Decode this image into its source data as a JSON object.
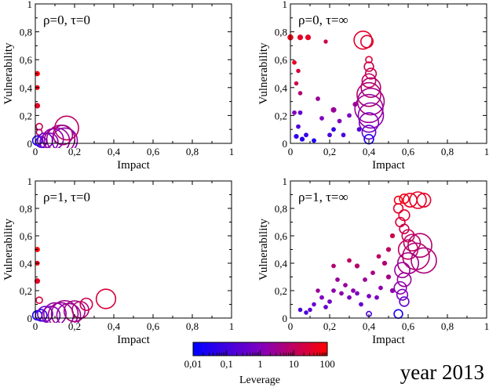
{
  "figure_label": "year 2013",
  "colorbar": {
    "title": "Leverage",
    "ticks": [
      "0,01",
      "0,1",
      "1",
      "10",
      "100"
    ],
    "colors": {
      "low": "#0000ff",
      "mid": "#7f00bf",
      "high": "#ff0000"
    }
  },
  "chart_data": [
    {
      "type": "scatter",
      "panel": "top-left",
      "title": "ρ=0, τ=0",
      "xlabel": "Impact",
      "ylabel": "Vulnerability",
      "xlim": [
        0,
        1
      ],
      "ylim": [
        0,
        1
      ],
      "xtick_labels": [
        "0",
        "0,2",
        "0,4",
        "0,6",
        "0,8",
        "1"
      ],
      "ytick_labels": [
        "0",
        "0,2",
        "0,4",
        "0,6",
        "0,8",
        "1"
      ],
      "points": [
        {
          "x": 0.01,
          "y": 0.5,
          "size": 0.25,
          "color": 1.0
        },
        {
          "x": 0.01,
          "y": 0.4,
          "size": 0.2,
          "color": 0.95
        },
        {
          "x": 0.01,
          "y": 0.27,
          "size": 0.3,
          "color": 0.9
        },
        {
          "x": 0.02,
          "y": 0.12,
          "size": 0.6,
          "color": 0.8
        },
        {
          "x": 0.02,
          "y": 0.08,
          "size": 0.5,
          "color": 0.7
        },
        {
          "x": 0.01,
          "y": 0.02,
          "size": 1.0,
          "color": 0.1
        },
        {
          "x": 0.03,
          "y": 0.01,
          "size": 1.2,
          "color": 0.2
        },
        {
          "x": 0.05,
          "y": 0.02,
          "size": 1.8,
          "color": 0.4
        },
        {
          "x": 0.07,
          "y": 0.01,
          "size": 2.2,
          "color": 0.5
        },
        {
          "x": 0.09,
          "y": 0.03,
          "size": 2.6,
          "color": 0.55
        },
        {
          "x": 0.11,
          "y": 0.02,
          "size": 3.2,
          "color": 0.6
        },
        {
          "x": 0.13,
          "y": 0.03,
          "size": 3.6,
          "color": 0.62
        },
        {
          "x": 0.15,
          "y": 0.02,
          "size": 3.2,
          "color": 0.55
        },
        {
          "x": 0.16,
          "y": 0.11,
          "size": 3.0,
          "color": 0.75
        },
        {
          "x": 0.14,
          "y": 0.06,
          "size": 2.4,
          "color": 0.65
        }
      ]
    },
    {
      "type": "scatter",
      "panel": "top-right",
      "title": "ρ=0, τ=∞",
      "xlabel": "Impact",
      "ylabel": "Vulnerability",
      "xlim": [
        0,
        1
      ],
      "ylim": [
        0,
        1
      ],
      "xtick_labels": [
        "0",
        "0,2",
        "0,4",
        "0,6",
        "0,8",
        "1"
      ],
      "ytick_labels": [
        "0",
        "0,2",
        "0,4",
        "0,6",
        "0,8",
        "1"
      ],
      "points": [
        {
          "x": 0.0,
          "y": 0.76,
          "size": 0.35,
          "color": 0.95
        },
        {
          "x": 0.05,
          "y": 0.76,
          "size": 0.3,
          "color": 0.9
        },
        {
          "x": 0.09,
          "y": 0.76,
          "size": 0.3,
          "color": 0.9
        },
        {
          "x": 0.18,
          "y": 0.73,
          "size": 0.1,
          "color": 0.8
        },
        {
          "x": 0.37,
          "y": 0.74,
          "size": 2.2,
          "color": 0.9
        },
        {
          "x": 0.39,
          "y": 0.73,
          "size": 1.4,
          "color": 0.88
        },
        {
          "x": 0.4,
          "y": 0.6,
          "size": 0.6,
          "color": 0.85
        },
        {
          "x": 0.4,
          "y": 0.55,
          "size": 1.0,
          "color": 0.8
        },
        {
          "x": 0.41,
          "y": 0.5,
          "size": 1.2,
          "color": 0.8
        },
        {
          "x": 0.4,
          "y": 0.45,
          "size": 1.6,
          "color": 0.75
        },
        {
          "x": 0.41,
          "y": 0.4,
          "size": 2.4,
          "color": 0.7
        },
        {
          "x": 0.4,
          "y": 0.35,
          "size": 3.0,
          "color": 0.7
        },
        {
          "x": 0.41,
          "y": 0.3,
          "size": 3.4,
          "color": 0.65
        },
        {
          "x": 0.4,
          "y": 0.25,
          "size": 3.6,
          "color": 0.6
        },
        {
          "x": 0.41,
          "y": 0.2,
          "size": 3.2,
          "color": 0.55
        },
        {
          "x": 0.4,
          "y": 0.15,
          "size": 2.4,
          "color": 0.5
        },
        {
          "x": 0.4,
          "y": 0.08,
          "size": 1.6,
          "color": 0.4
        },
        {
          "x": 0.4,
          "y": 0.03,
          "size": 1.0,
          "color": 0.1
        },
        {
          "x": 0.02,
          "y": 0.58,
          "size": 0.15,
          "color": 0.9
        },
        {
          "x": 0.04,
          "y": 0.52,
          "size": 0.12,
          "color": 0.85
        },
        {
          "x": 0.03,
          "y": 0.43,
          "size": 0.12,
          "color": 0.8
        },
        {
          "x": 0.05,
          "y": 0.36,
          "size": 0.12,
          "color": 0.7
        },
        {
          "x": 0.02,
          "y": 0.22,
          "size": 0.15,
          "color": 0.5
        },
        {
          "x": 0.05,
          "y": 0.22,
          "size": 0.15,
          "color": 0.4
        },
        {
          "x": 0.04,
          "y": 0.12,
          "size": 0.15,
          "color": 0.3
        },
        {
          "x": 0.03,
          "y": 0.05,
          "size": 0.2,
          "color": 0.2
        },
        {
          "x": 0.06,
          "y": 0.03,
          "size": 0.2,
          "color": 0.15
        },
        {
          "x": 0.08,
          "y": 0.06,
          "size": 0.15,
          "color": 0.2
        },
        {
          "x": 0.12,
          "y": 0.02,
          "size": 0.15,
          "color": 0.1
        },
        {
          "x": 0.16,
          "y": 0.18,
          "size": 0.15,
          "color": 0.5
        },
        {
          "x": 0.2,
          "y": 0.06,
          "size": 0.15,
          "color": 0.3
        },
        {
          "x": 0.22,
          "y": 0.24,
          "size": 0.3,
          "color": 0.6
        },
        {
          "x": 0.25,
          "y": 0.16,
          "size": 0.15,
          "color": 0.5
        },
        {
          "x": 0.27,
          "y": 0.06,
          "size": 0.15,
          "color": 0.3
        },
        {
          "x": 0.3,
          "y": 0.2,
          "size": 0.15,
          "color": 0.5
        },
        {
          "x": 0.33,
          "y": 0.28,
          "size": 0.2,
          "color": 0.6
        },
        {
          "x": 0.35,
          "y": 0.1,
          "size": 0.15,
          "color": 0.3
        },
        {
          "x": 0.22,
          "y": 0.1,
          "size": 0.15,
          "color": 0.2
        },
        {
          "x": 0.14,
          "y": 0.32,
          "size": 0.15,
          "color": 0.6
        }
      ]
    },
    {
      "type": "scatter",
      "panel": "bottom-left",
      "title": "ρ=1, τ=0",
      "xlabel": "Impact",
      "ylabel": "Vulnerability",
      "xlim": [
        0,
        1
      ],
      "ylim": [
        0,
        1
      ],
      "xtick_labels": [
        "0",
        "0,2",
        "0,4",
        "0,6",
        "0,8",
        "1"
      ],
      "ytick_labels": [
        "0",
        "0,2",
        "0,4",
        "0,6",
        "0,8",
        "1"
      ],
      "points": [
        {
          "x": 0.01,
          "y": 0.5,
          "size": 0.25,
          "color": 1.0
        },
        {
          "x": 0.01,
          "y": 0.4,
          "size": 0.2,
          "color": 0.95
        },
        {
          "x": 0.01,
          "y": 0.27,
          "size": 0.3,
          "color": 0.9
        },
        {
          "x": 0.02,
          "y": 0.13,
          "size": 0.6,
          "color": 0.85
        },
        {
          "x": 0.01,
          "y": 0.02,
          "size": 1.0,
          "color": 0.1
        },
        {
          "x": 0.03,
          "y": 0.02,
          "size": 1.3,
          "color": 0.2
        },
        {
          "x": 0.05,
          "y": 0.03,
          "size": 1.8,
          "color": 0.4
        },
        {
          "x": 0.08,
          "y": 0.02,
          "size": 2.2,
          "color": 0.5
        },
        {
          "x": 0.1,
          "y": 0.03,
          "size": 2.8,
          "color": 0.55
        },
        {
          "x": 0.13,
          "y": 0.02,
          "size": 3.2,
          "color": 0.6
        },
        {
          "x": 0.15,
          "y": 0.03,
          "size": 3.4,
          "color": 0.62
        },
        {
          "x": 0.17,
          "y": 0.02,
          "size": 3.0,
          "color": 0.6
        },
        {
          "x": 0.2,
          "y": 0.05,
          "size": 2.6,
          "color": 0.65
        },
        {
          "x": 0.23,
          "y": 0.06,
          "size": 2.0,
          "color": 0.7
        },
        {
          "x": 0.26,
          "y": 0.1,
          "size": 1.4,
          "color": 0.8
        },
        {
          "x": 0.36,
          "y": 0.14,
          "size": 2.4,
          "color": 0.85
        }
      ]
    },
    {
      "type": "scatter",
      "panel": "bottom-right",
      "title": "ρ=1, τ=∞",
      "xlabel": "Impact",
      "ylabel": "Vulnerability",
      "xlim": [
        0,
        1
      ],
      "ylim": [
        0,
        1
      ],
      "xtick_labels": [
        "0",
        "0,2",
        "0,4",
        "0,6",
        "0,8",
        "1"
      ],
      "ytick_labels": [
        "0",
        "0,2",
        "0,4",
        "0,6",
        "0,8",
        "1"
      ],
      "points": [
        {
          "x": 0.55,
          "y": 0.86,
          "size": 0.8,
          "color": 0.95
        },
        {
          "x": 0.58,
          "y": 0.87,
          "size": 1.0,
          "color": 0.95
        },
        {
          "x": 0.61,
          "y": 0.86,
          "size": 1.6,
          "color": 0.92
        },
        {
          "x": 0.65,
          "y": 0.86,
          "size": 2.0,
          "color": 0.9
        },
        {
          "x": 0.68,
          "y": 0.86,
          "size": 1.6,
          "color": 0.9
        },
        {
          "x": 0.55,
          "y": 0.8,
          "size": 1.0,
          "color": 0.9
        },
        {
          "x": 0.58,
          "y": 0.75,
          "size": 1.2,
          "color": 0.88
        },
        {
          "x": 0.56,
          "y": 0.7,
          "size": 1.0,
          "color": 0.85
        },
        {
          "x": 0.58,
          "y": 0.65,
          "size": 1.0,
          "color": 0.8
        },
        {
          "x": 0.6,
          "y": 0.6,
          "size": 1.4,
          "color": 0.8
        },
        {
          "x": 0.62,
          "y": 0.55,
          "size": 2.0,
          "color": 0.75
        },
        {
          "x": 0.66,
          "y": 0.53,
          "size": 3.0,
          "color": 0.72
        },
        {
          "x": 0.6,
          "y": 0.5,
          "size": 2.4,
          "color": 0.75
        },
        {
          "x": 0.64,
          "y": 0.45,
          "size": 3.4,
          "color": 0.7
        },
        {
          "x": 0.68,
          "y": 0.42,
          "size": 3.2,
          "color": 0.68
        },
        {
          "x": 0.6,
          "y": 0.4,
          "size": 2.6,
          "color": 0.65
        },
        {
          "x": 0.57,
          "y": 0.35,
          "size": 1.8,
          "color": 0.6
        },
        {
          "x": 0.58,
          "y": 0.28,
          "size": 1.6,
          "color": 0.6
        },
        {
          "x": 0.56,
          "y": 0.22,
          "size": 1.4,
          "color": 0.55
        },
        {
          "x": 0.57,
          "y": 0.17,
          "size": 1.2,
          "color": 0.5
        },
        {
          "x": 0.58,
          "y": 0.12,
          "size": 1.0,
          "color": 0.4
        },
        {
          "x": 0.55,
          "y": 0.03,
          "size": 0.9,
          "color": 0.1
        },
        {
          "x": 0.52,
          "y": 0.6,
          "size": 0.2,
          "color": 0.8
        },
        {
          "x": 0.5,
          "y": 0.5,
          "size": 0.2,
          "color": 0.75
        },
        {
          "x": 0.48,
          "y": 0.4,
          "size": 0.2,
          "color": 0.7
        },
        {
          "x": 0.5,
          "y": 0.3,
          "size": 0.2,
          "color": 0.65
        },
        {
          "x": 0.52,
          "y": 0.2,
          "size": 0.2,
          "color": 0.55
        },
        {
          "x": 0.46,
          "y": 0.22,
          "size": 0.15,
          "color": 0.55
        },
        {
          "x": 0.44,
          "y": 0.15,
          "size": 0.15,
          "color": 0.5
        },
        {
          "x": 0.4,
          "y": 0.16,
          "size": 0.15,
          "color": 0.5
        },
        {
          "x": 0.38,
          "y": 0.28,
          "size": 0.15,
          "color": 0.6
        },
        {
          "x": 0.36,
          "y": 0.1,
          "size": 0.15,
          "color": 0.4
        },
        {
          "x": 0.34,
          "y": 0.18,
          "size": 0.15,
          "color": 0.5
        },
        {
          "x": 0.32,
          "y": 0.2,
          "size": 0.15,
          "color": 0.55
        },
        {
          "x": 0.3,
          "y": 0.15,
          "size": 0.15,
          "color": 0.5
        },
        {
          "x": 0.28,
          "y": 0.24,
          "size": 0.15,
          "color": 0.6
        },
        {
          "x": 0.26,
          "y": 0.18,
          "size": 0.15,
          "color": 0.55
        },
        {
          "x": 0.24,
          "y": 0.28,
          "size": 0.15,
          "color": 0.6
        },
        {
          "x": 0.22,
          "y": 0.2,
          "size": 0.15,
          "color": 0.55
        },
        {
          "x": 0.2,
          "y": 0.12,
          "size": 0.15,
          "color": 0.45
        },
        {
          "x": 0.18,
          "y": 0.08,
          "size": 0.15,
          "color": 0.4
        },
        {
          "x": 0.16,
          "y": 0.15,
          "size": 0.15,
          "color": 0.5
        },
        {
          "x": 0.14,
          "y": 0.2,
          "size": 0.12,
          "color": 0.6
        },
        {
          "x": 0.12,
          "y": 0.1,
          "size": 0.12,
          "color": 0.4
        },
        {
          "x": 0.1,
          "y": 0.06,
          "size": 0.12,
          "color": 0.35
        },
        {
          "x": 0.08,
          "y": 0.04,
          "size": 0.12,
          "color": 0.3
        },
        {
          "x": 0.05,
          "y": 0.06,
          "size": 0.12,
          "color": 0.3
        },
        {
          "x": 0.22,
          "y": 0.38,
          "size": 0.15,
          "color": 0.7
        },
        {
          "x": 0.3,
          "y": 0.42,
          "size": 0.15,
          "color": 0.75
        },
        {
          "x": 0.34,
          "y": 0.38,
          "size": 0.2,
          "color": 0.72
        },
        {
          "x": 0.4,
          "y": 0.03,
          "size": 0.4,
          "color": 0.3
        },
        {
          "x": 0.45,
          "y": 0.45,
          "size": 0.15,
          "color": 0.75
        },
        {
          "x": 0.42,
          "y": 0.33,
          "size": 0.15,
          "color": 0.65
        }
      ]
    }
  ]
}
